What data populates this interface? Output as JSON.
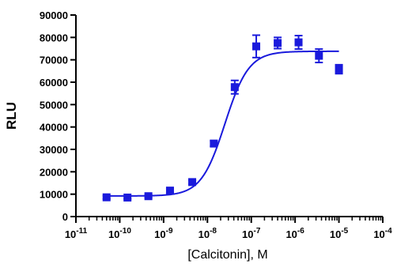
{
  "chart_data": {
    "type": "scatter",
    "xlabel": "[Calcitonin], M",
    "ylabel": "RLU",
    "x_scale": "log",
    "xlim": [
      1e-11,
      0.0001
    ],
    "ylim": [
      0,
      90000
    ],
    "x_ticks": [
      {
        "value": 1e-11,
        "base": "10",
        "exp": "-11"
      },
      {
        "value": 1e-10,
        "base": "10",
        "exp": "-10"
      },
      {
        "value": 1e-09,
        "base": "10",
        "exp": "-9"
      },
      {
        "value": 1e-08,
        "base": "10",
        "exp": "-8"
      },
      {
        "value": 1e-07,
        "base": "10",
        "exp": "-7"
      },
      {
        "value": 1e-06,
        "base": "10",
        "exp": "-6"
      },
      {
        "value": 1e-05,
        "base": "10",
        "exp": "-5"
      },
      {
        "value": 0.0001,
        "base": "10",
        "exp": "-4"
      }
    ],
    "y_ticks": [
      0,
      10000,
      20000,
      30000,
      40000,
      50000,
      60000,
      70000,
      80000,
      90000
    ],
    "y_tick_labels": [
      "0",
      "10000",
      "20000",
      "30000",
      "40000",
      "50000",
      "60000",
      "70000",
      "80000",
      "90000"
    ],
    "grid": false,
    "legend": "none",
    "color": "#1a1adc",
    "series": [
      {
        "points": [
          {
            "x": 5e-11,
            "y": 8600,
            "err": 700
          },
          {
            "x": 1.5e-10,
            "y": 8500,
            "err": 600
          },
          {
            "x": 4.5e-10,
            "y": 9100,
            "err": 600
          },
          {
            "x": 1.4e-09,
            "y": 11600,
            "err": 900
          },
          {
            "x": 4.5e-09,
            "y": 15400,
            "err": 800
          },
          {
            "x": 1.4e-08,
            "y": 32600,
            "err": 1200
          },
          {
            "x": 4.2e-08,
            "y": 57800,
            "err": 3000
          },
          {
            "x": 1.3e-07,
            "y": 76000,
            "err": 5000
          },
          {
            "x": 4e-07,
            "y": 77500,
            "err": 2500
          },
          {
            "x": 1.2e-06,
            "y": 77800,
            "err": 3000
          },
          {
            "x": 3.5e-06,
            "y": 71800,
            "err": 3000
          },
          {
            "x": 1e-05,
            "y": 65800,
            "err": 2000
          }
        ],
        "fit": {
          "bottom": 9200,
          "top": 73800,
          "log_ec50": -7.6,
          "hill": 1.6,
          "x_min": 5e-11,
          "x_max": 1e-05
        }
      }
    ]
  }
}
